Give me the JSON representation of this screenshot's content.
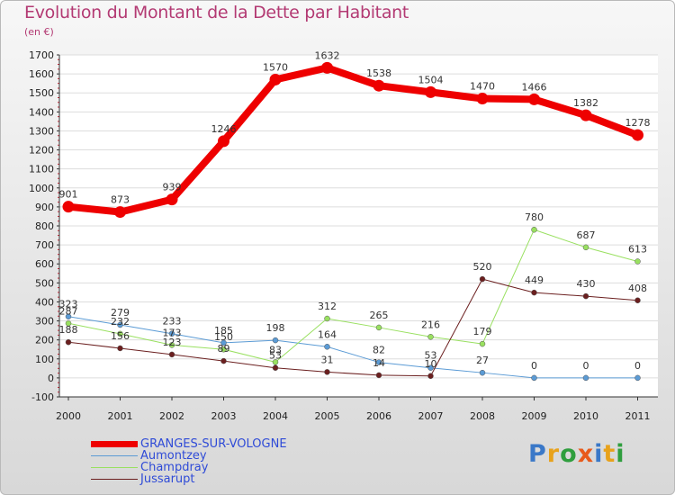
{
  "title": "Evolution du Montant de la Dette par Habitant",
  "subtitle": "(en €)",
  "logo": "Proxiti",
  "chart_data": {
    "type": "line",
    "title": "Evolution du Montant de la Dette par Habitant",
    "subtitle": "(en €)",
    "x": [
      "2000",
      "2001",
      "2002",
      "2003",
      "2004",
      "2005",
      "2006",
      "2007",
      "2008",
      "2009",
      "2010",
      "2011"
    ],
    "ylim": [
      -100,
      1700
    ],
    "yticks": [
      -100,
      0,
      100,
      200,
      300,
      400,
      500,
      600,
      700,
      800,
      900,
      1000,
      1100,
      1200,
      1300,
      1400,
      1500,
      1600,
      1700
    ],
    "grid": "horizontal",
    "legend_position": "bottom-left",
    "series": [
      {
        "name": "GRANGES-SUR-VOLOGNE",
        "color": "#ee0000",
        "width": 8,
        "values": [
          901,
          873,
          939,
          1246,
          1570,
          1632,
          1538,
          1504,
          1470,
          1466,
          1382,
          1278
        ],
        "labels": [
          "901",
          "873",
          "939",
          "1246",
          "1570",
          "1632",
          "1538",
          "1504",
          "1470",
          "1466",
          "1382",
          "1278"
        ]
      },
      {
        "name": "Aumontzey",
        "color": "#5b9bd5",
        "width": 1,
        "values": [
          323,
          279,
          233,
          185,
          198,
          164,
          82,
          53,
          27,
          0,
          0,
          0
        ],
        "labels": [
          "323",
          "279",
          "233",
          "185",
          "198",
          "164",
          "82",
          "53",
          "27",
          "0",
          "0",
          "0"
        ]
      },
      {
        "name": "Champdray",
        "color": "#99e060",
        "width": 1,
        "values": [
          287,
          232,
          173,
          150,
          83,
          312,
          265,
          216,
          179,
          780,
          687,
          613
        ],
        "labels": [
          "287",
          "232",
          "173",
          "150",
          "83",
          "312",
          "265",
          "216",
          "179",
          "780",
          "687",
          "613"
        ]
      },
      {
        "name": "Jussarupt",
        "color": "#6b1f1f",
        "width": 1,
        "values": [
          188,
          156,
          123,
          89,
          53,
          31,
          14,
          10,
          520,
          449,
          430,
          408
        ],
        "labels": [
          "188",
          "156",
          "123",
          "89",
          "53",
          "31",
          "14",
          "10",
          "520",
          "449",
          "430",
          "408"
        ]
      }
    ]
  }
}
